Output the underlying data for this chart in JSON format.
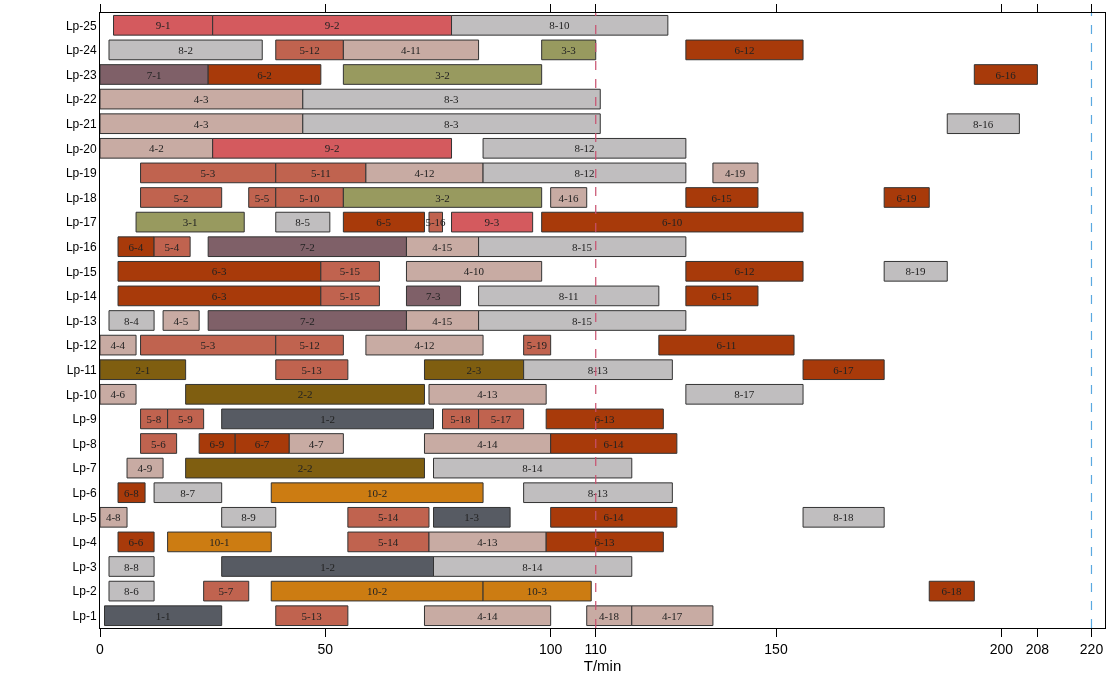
{
  "chart_data": {
    "type": "bar",
    "orientation": "horizontal",
    "xlabel": "T/min",
    "categories": [
      "Lp-25",
      "Lp-24",
      "Lp-23",
      "Lp-22",
      "Lp-21",
      "Lp-20",
      "Lp-19",
      "Lp-18",
      "Lp-17",
      "Lp-16",
      "Lp-15",
      "Lp-14",
      "Lp-13",
      "Lp-12",
      "Lp-11",
      "Lp-10",
      "Lp-9",
      "Lp-8",
      "Lp-7",
      "Lp-6",
      "Lp-5",
      "Lp-4",
      "Lp-3",
      "Lp-2",
      "Lp-1"
    ],
    "xlim": [
      0,
      223
    ],
    "xticks": [
      0,
      50,
      100,
      110,
      150,
      200,
      208,
      220
    ],
    "ref_lines": [
      {
        "axis": "x",
        "value": 110,
        "label": null,
        "color": "#c8506e",
        "line_style": "dashed"
      },
      {
        "axis": "x",
        "value": 220,
        "label": null,
        "color": "#5aa9e0",
        "line_style": "dashed"
      }
    ],
    "series": [
      {
        "base": [
          3,
          2,
          0,
          0,
          0,
          0,
          9,
          9,
          8,
          4,
          4,
          4,
          2,
          0,
          0,
          0,
          9,
          9,
          6,
          4,
          0,
          4,
          2,
          2,
          1
        ],
        "values": [
          22,
          34,
          24,
          45,
          45,
          25,
          30,
          18,
          24,
          8,
          45,
          45,
          10,
          8,
          19,
          8,
          6,
          8,
          8,
          6,
          6,
          8,
          10,
          10,
          26
        ],
        "value_labels": [
          "9-1",
          "8-2",
          "7-1",
          "4-3",
          "4-3",
          "4-2",
          "5-3",
          "5-2",
          "3-1",
          "6-4",
          "6-3",
          "6-3",
          "8-4",
          "4-4",
          "2-1",
          "4-6",
          "5-8",
          "5-6",
          "4-9",
          "6-8",
          "4-8",
          "6-6",
          "8-8",
          "8-6",
          "1-1"
        ],
        "colors": [
          "#d45a5e",
          "#c0bebf",
          "#7f6068",
          "#c8aba3",
          "#c8aba3",
          "#c8aba3",
          "#c0634f",
          "#c0634f",
          "#989a5f",
          "#a83a0a",
          "#a83a0a",
          "#a83a0a",
          "#c0bebf",
          "#c8aba3",
          "#7f5e10",
          "#c8aba3",
          "#c0634f",
          "#c0634f",
          "#c8aba3",
          "#a83a0a",
          "#c8aba3",
          "#a83a0a",
          "#c0bebf",
          "#c0bebf",
          "#575b63"
        ]
      },
      {
        "base": [
          25,
          39,
          24,
          45,
          45,
          25,
          39,
          33,
          39,
          12,
          49,
          49,
          14,
          9,
          39,
          19,
          15,
          22,
          19,
          12,
          27,
          15,
          27,
          23,
          39
        ],
        "values": [
          53,
          15,
          25,
          66,
          66,
          53,
          20,
          6,
          12,
          8,
          13,
          13,
          8,
          30,
          16,
          53,
          8,
          8,
          53,
          15,
          12,
          23,
          47,
          10,
          16
        ],
        "value_labels": [
          "9-2",
          "5-12",
          "6-2",
          "8-3",
          "8-3",
          "9-2",
          "5-11",
          "5-5",
          "8-5",
          "5-4",
          "5-15",
          "5-15",
          "4-5",
          "5-3",
          "5-13",
          "2-2",
          "5-9",
          "6-9",
          "2-2",
          "8-7",
          "8-9",
          "10-1",
          "1-2",
          "5-7",
          "5-13"
        ],
        "colors": [
          "#d45a5e",
          "#c0634f",
          "#a83a0a",
          "#c0bebf",
          "#c0bebf",
          "#d45a5e",
          "#c0634f",
          "#c0634f",
          "#c0bebf",
          "#c0634f",
          "#c0634f",
          "#c0634f",
          "#c8aba3",
          "#c0634f",
          "#c0634f",
          "#7f5e10",
          "#c0634f",
          "#a83a0a",
          "#7f5e10",
          "#c0bebf",
          "#c0bebf",
          "#cc7c12",
          "#575b63",
          "#c0634f",
          "#c0634f"
        ]
      },
      {
        "base": [
          78,
          54,
          54,
          null,
          188,
          85,
          59,
          39,
          54,
          24,
          68,
          68,
          24,
          39,
          72,
          73,
          27,
          30,
          74,
          38,
          55,
          55,
          74,
          38,
          72
        ],
        "values": [
          48,
          30,
          44,
          null,
          16,
          45,
          26,
          15,
          18,
          44,
          30,
          12,
          44,
          15,
          22,
          26,
          47,
          12,
          44,
          47,
          18,
          18,
          44,
          47,
          28
        ],
        "value_labels": [
          "8-10",
          "4-11",
          "3-2",
          null,
          "8-16",
          "8-12",
          "4-12",
          "5-10",
          "6-5",
          "7-2",
          "4-10",
          "7-3",
          "7-2",
          "5-12",
          "2-3",
          "4-13",
          "1-2",
          "6-7",
          "8-14",
          "10-2",
          "5-14",
          "5-14",
          "8-14",
          "10-2",
          "4-14"
        ],
        "colors": [
          "#c0bebf",
          "#c8aba3",
          "#989a5f",
          null,
          "#c0bebf",
          "#c0bebf",
          "#c8aba3",
          "#c0634f",
          "#a83a0a",
          "#7f6068",
          "#c8aba3",
          "#7f6068",
          "#7f6068",
          "#c0634f",
          "#7f5e10",
          "#c8aba3",
          "#575b63",
          "#a83a0a",
          "#c0bebf",
          "#cc7c12",
          "#c0634f",
          "#c0634f",
          "#c0bebf",
          "#cc7c12",
          "#c8aba3"
        ]
      },
      {
        "base": [
          null,
          98,
          194,
          null,
          null,
          null,
          85,
          54,
          73,
          68,
          130,
          84,
          68,
          59,
          94,
          130,
          76,
          42,
          null,
          94,
          74,
          73,
          null,
          85,
          108
        ],
        "values": [
          null,
          12,
          14,
          null,
          null,
          null,
          45,
          44,
          3,
          16,
          26,
          40,
          16,
          26,
          33,
          26,
          8,
          12,
          null,
          33,
          17,
          26,
          null,
          24,
          10
        ],
        "value_labels": [
          null,
          "3-3",
          "6-16",
          null,
          null,
          null,
          "8-12",
          "3-2",
          "5-16",
          "4-15",
          "6-12",
          "8-11",
          "4-15",
          "4-12",
          "8-13",
          "8-17",
          "5-18",
          "4-7",
          null,
          "8-13",
          "1-3",
          "4-13",
          null,
          "10-3",
          "4-18"
        ],
        "colors": [
          null,
          "#989a5f",
          "#a83a0a",
          null,
          null,
          null,
          "#c0bebf",
          "#989a5f",
          "#c0634f",
          "#c8aba3",
          "#a83a0a",
          "#c0bebf",
          "#c8aba3",
          "#c8aba3",
          "#c0bebf",
          "#c0bebf",
          "#c0634f",
          "#c8aba3",
          null,
          "#c0bebf",
          "#575b63",
          "#c8aba3",
          null,
          "#cc7c12",
          "#c8aba3"
        ]
      },
      {
        "base": [
          null,
          130,
          null,
          null,
          null,
          null,
          136,
          100,
          78,
          84,
          174,
          130,
          84,
          94,
          156,
          null,
          84,
          72,
          null,
          null,
          100,
          99,
          null,
          184,
          118
        ],
        "values": [
          null,
          26,
          null,
          null,
          null,
          null,
          10,
          8,
          18,
          46,
          14,
          16,
          46,
          6,
          18,
          null,
          10,
          28,
          null,
          null,
          28,
          26,
          null,
          10,
          18
        ],
        "value_labels": [
          null,
          "6-12",
          null,
          null,
          null,
          null,
          "4-19",
          "4-16",
          "9-3",
          "8-15",
          "8-19",
          "6-15",
          "8-15",
          "5-19",
          "6-17",
          null,
          "5-17",
          "4-14",
          null,
          null,
          "6-14",
          "6-13",
          null,
          "6-18",
          "4-17"
        ],
        "colors": [
          null,
          "#a83a0a",
          null,
          null,
          null,
          null,
          "#c8aba3",
          "#c8aba3",
          "#d45a5e",
          "#c0bebf",
          "#c0bebf",
          "#a83a0a",
          "#c0bebf",
          "#c0634f",
          "#a83a0a",
          null,
          "#c0634f",
          "#c8aba3",
          null,
          null,
          "#a83a0a",
          "#a83a0a",
          null,
          "#a83a0a",
          "#c8aba3"
        ]
      },
      {
        "base": [
          null,
          null,
          null,
          null,
          null,
          null,
          null,
          130,
          98,
          null,
          null,
          null,
          null,
          124,
          null,
          null,
          99,
          100,
          null,
          null,
          156,
          null,
          null,
          null,
          null
        ],
        "values": [
          null,
          null,
          null,
          null,
          null,
          null,
          null,
          16,
          58,
          null,
          null,
          null,
          null,
          30,
          null,
          null,
          26,
          28,
          null,
          null,
          18,
          null,
          null,
          null,
          null
        ],
        "value_labels": [
          null,
          null,
          null,
          null,
          null,
          null,
          null,
          "6-15",
          "6-10",
          null,
          null,
          null,
          null,
          "6-11",
          null,
          null,
          "6-13",
          "6-14",
          null,
          null,
          "8-18",
          null,
          null,
          null,
          null
        ],
        "colors": [
          null,
          null,
          null,
          null,
          null,
          null,
          null,
          "#a83a0a",
          "#a83a0a",
          null,
          null,
          null,
          null,
          "#a83a0a",
          null,
          null,
          "#a83a0a",
          "#a83a0a",
          null,
          null,
          "#c0bebf",
          null,
          null,
          null,
          null
        ]
      },
      {
        "base": [
          null,
          null,
          null,
          null,
          null,
          null,
          null,
          174,
          null,
          null,
          null,
          null,
          null,
          null,
          null,
          null,
          null,
          null,
          null,
          null,
          null,
          null,
          null,
          null,
          null
        ],
        "values": [
          null,
          null,
          null,
          null,
          null,
          null,
          null,
          10,
          null,
          null,
          null,
          null,
          null,
          null,
          null,
          null,
          null,
          null,
          null,
          null,
          null,
          null,
          null,
          null,
          null
        ],
        "value_labels": [
          null,
          null,
          null,
          null,
          null,
          null,
          null,
          "6-19",
          null,
          null,
          null,
          null,
          null,
          null,
          null,
          null,
          null,
          null,
          null,
          null,
          null,
          null,
          null,
          null,
          null
        ],
        "colors": [
          null,
          null,
          null,
          null,
          null,
          null,
          null,
          "#a83a0a",
          null,
          null,
          null,
          null,
          null,
          null,
          null,
          null,
          null,
          null,
          null,
          null,
          null,
          null,
          null,
          null,
          null
        ]
      }
    ]
  }
}
